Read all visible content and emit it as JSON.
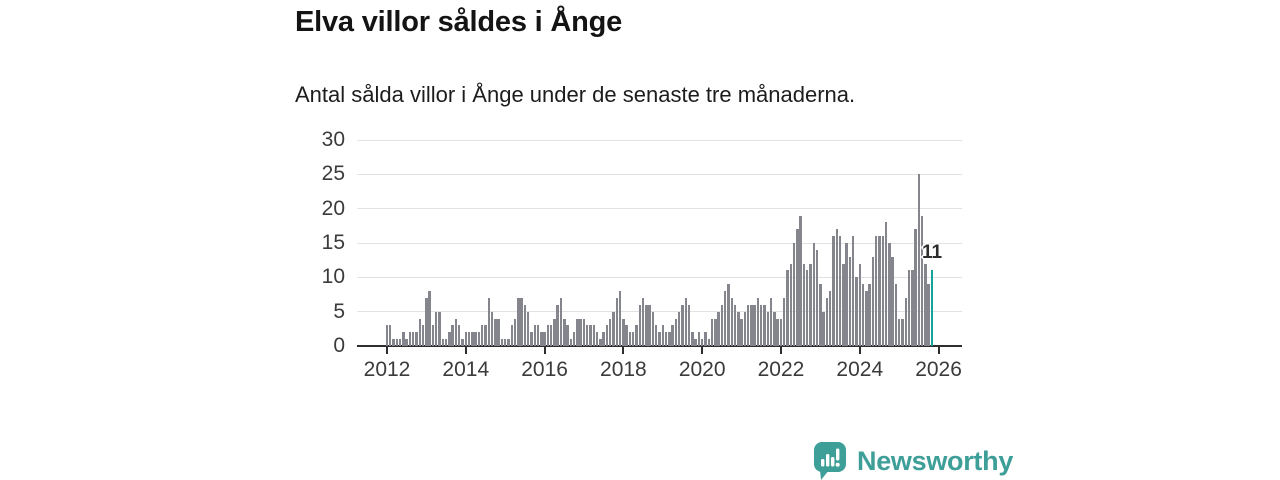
{
  "header": {
    "title": "Elva villor såldes i Ånge",
    "subtitle": "Antal sålda villor i Ånge under de senaste tre månaderna."
  },
  "chart_data": {
    "type": "bar",
    "title": "Elva villor såldes i Ånge",
    "subtitle": "Antal sålda villor i Ånge under de senaste tre månaderna.",
    "x_frequency": "monthly",
    "x_tick_labels": [
      "2012",
      "2014",
      "2016",
      "2018",
      "2020",
      "2022",
      "2024",
      "2026"
    ],
    "x_tick_start_year": 2012,
    "y_ticks": [
      0,
      5,
      10,
      15,
      20,
      25,
      30
    ],
    "ylim": [
      0,
      30
    ],
    "grid": "horizontal",
    "legend": "none",
    "series": [
      {
        "name": "Antal sålda villor",
        "start": "2012",
        "values": [
          3,
          3,
          1,
          1,
          1,
          2,
          1,
          2,
          2,
          2,
          4,
          3,
          7,
          8,
          3,
          5,
          5,
          1,
          1,
          2,
          3,
          4,
          3,
          1,
          2,
          2,
          2,
          2,
          2,
          3,
          3,
          7,
          5,
          4,
          4,
          1,
          1,
          1,
          3,
          4,
          7,
          7,
          6,
          5,
          2,
          3,
          3,
          2,
          2,
          3,
          3,
          4,
          6,
          7,
          4,
          3,
          1,
          2,
          4,
          4,
          4,
          3,
          3,
          3,
          2,
          1,
          2,
          3,
          4,
          5,
          7,
          8,
          4,
          3,
          2,
          2,
          3,
          6,
          7,
          6,
          6,
          5,
          3,
          2,
          3,
          2,
          2,
          3,
          4,
          5,
          6,
          7,
          6,
          2,
          1,
          2,
          1,
          2,
          1,
          4,
          4,
          5,
          6,
          8,
          9,
          7,
          6,
          5,
          4,
          5,
          6,
          6,
          6,
          7,
          6,
          6,
          5,
          7,
          5,
          4,
          4,
          7,
          11,
          12,
          15,
          17,
          19,
          12,
          11,
          12,
          15,
          14,
          9,
          5,
          7,
          8,
          16,
          17,
          16,
          12,
          15,
          13,
          16,
          10,
          12,
          9,
          8,
          9,
          13,
          16,
          16,
          16,
          18,
          15,
          13,
          9,
          4,
          4,
          7,
          11,
          11,
          17,
          25,
          19,
          12,
          9,
          11
        ]
      }
    ],
    "highlight": {
      "index": 166,
      "value": 11,
      "label": "11",
      "color": "#13a59b"
    },
    "bar_color": "#85858d"
  },
  "footer": {
    "brand": "Newsworthy"
  },
  "colors": {
    "accent_teal": "#13a59b",
    "brand_teal": "#3e9e98",
    "bar_gray": "#85858d",
    "axis_dark": "#2e2e2e",
    "grid_light": "#e2e2e4"
  }
}
